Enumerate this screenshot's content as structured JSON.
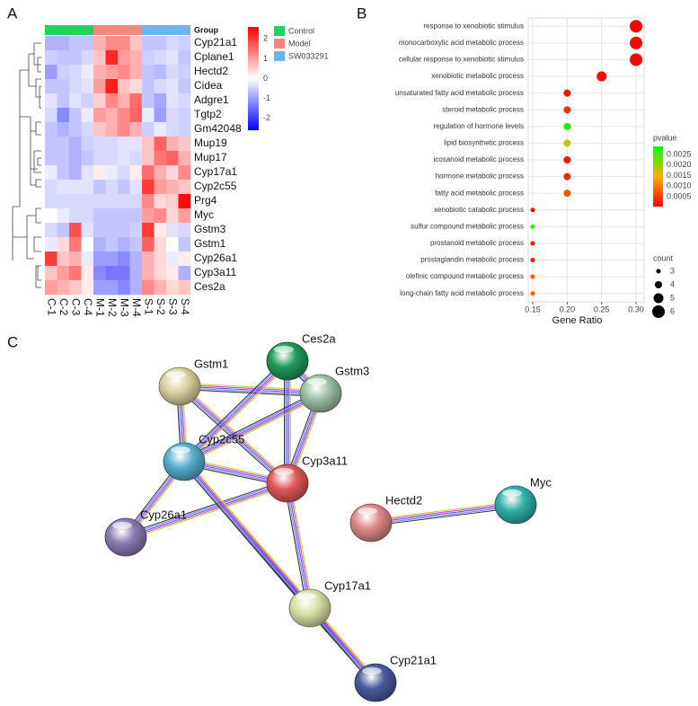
{
  "chart_data": [
    {
      "type": "heatmap",
      "panel": "A",
      "legend_title": "Group",
      "groups": [
        {
          "name": "Control",
          "color": "#1fd35c",
          "columns": 4
        },
        {
          "name": "Model",
          "color": "#f2877f",
          "columns": 4
        },
        {
          "name": "SW033291",
          "color": "#6db3f2",
          "columns": 4
        }
      ],
      "columns": [
        "C-1",
        "C-2",
        "C-3",
        "C-4",
        "M-1",
        "M-2",
        "M-3",
        "M-4",
        "S-1",
        "S-2",
        "S-3",
        "S-4"
      ],
      "rows": [
        "Cyp21a1",
        "Cplane1",
        "Hectd2",
        "Cidea",
        "Adgre1",
        "Tgtp2",
        "Gm42048",
        "Mup19",
        "Mup17",
        "Cyp17a1",
        "Cyp2c55",
        "Prg4",
        "Myc",
        "Gstm3",
        "Gstm1",
        "Cyp26a1",
        "Cyp3a11",
        "Ces2a"
      ],
      "values": [
        [
          -0.8,
          -0.8,
          -0.6,
          -0.6,
          0.8,
          1.2,
          1.2,
          0.6,
          -0.6,
          -0.6,
          -0.4,
          -0.5
        ],
        [
          -0.5,
          -0.6,
          -0.6,
          -0.4,
          0.6,
          2.2,
          1.0,
          0.8,
          -0.5,
          -0.4,
          -0.3,
          -0.6
        ],
        [
          -1.0,
          -0.5,
          -0.4,
          -0.2,
          0.8,
          1.0,
          1.2,
          0.8,
          -0.6,
          -0.7,
          -0.4,
          -0.5
        ],
        [
          -0.6,
          -0.6,
          -0.4,
          -0.3,
          1.0,
          2.3,
          0.6,
          0.4,
          -0.6,
          -0.4,
          -0.3,
          -0.6
        ],
        [
          -0.3,
          -0.6,
          -0.3,
          -0.5,
          0.5,
          1.2,
          0.8,
          1.5,
          -0.6,
          -0.9,
          -0.3,
          -0.4
        ],
        [
          -0.4,
          -1.2,
          -0.6,
          -0.2,
          1.0,
          0.8,
          1.2,
          1.6,
          -0.2,
          -1.0,
          -0.4,
          -0.5
        ],
        [
          -0.6,
          -0.8,
          -0.6,
          -0.4,
          0.6,
          0.8,
          1.2,
          0.8,
          -0.5,
          -0.2,
          -0.4,
          -0.5
        ],
        [
          -0.6,
          -0.6,
          -0.8,
          -0.5,
          -0.4,
          -0.4,
          -0.3,
          -0.3,
          0.6,
          1.6,
          0.8,
          0.6
        ],
        [
          -0.6,
          -0.6,
          -0.8,
          -0.6,
          -0.4,
          -0.4,
          -0.3,
          -0.4,
          0.6,
          1.4,
          1.6,
          0.8
        ],
        [
          -0.2,
          -0.6,
          -0.8,
          -0.3,
          0.2,
          -0.2,
          -0.4,
          0.2,
          1.5,
          0.8,
          0.4,
          1.2
        ],
        [
          -0.4,
          -0.3,
          -0.3,
          -0.3,
          -0.6,
          -0.4,
          -0.6,
          -0.3,
          2.0,
          1.0,
          0.8,
          0.6
        ],
        [
          -0.4,
          -0.4,
          -0.4,
          -0.4,
          -0.4,
          -0.4,
          -0.4,
          -0.4,
          1.2,
          0.4,
          0.5,
          2.5
        ],
        [
          0.0,
          -0.2,
          -0.4,
          -0.4,
          -0.6,
          -0.6,
          -0.6,
          -0.6,
          1.0,
          1.2,
          0.4,
          1.0
        ],
        [
          -0.4,
          -0.6,
          1.8,
          -0.3,
          -0.6,
          -0.6,
          -0.6,
          -0.5,
          2.0,
          0.2,
          -0.3,
          -0.4
        ],
        [
          -0.2,
          0.4,
          1.4,
          0.0,
          -0.8,
          -0.6,
          -0.8,
          -0.6,
          1.6,
          0.4,
          0.0,
          -0.6
        ],
        [
          2.0,
          0.6,
          0.8,
          -0.2,
          -1.0,
          -1.0,
          -1.2,
          -0.8,
          0.8,
          0.4,
          -0.2,
          0.2
        ],
        [
          0.6,
          1.0,
          1.4,
          0.2,
          -1.2,
          -1.4,
          -1.4,
          -0.8,
          0.8,
          0.4,
          0.2,
          -0.8
        ],
        [
          1.0,
          0.8,
          0.6,
          0.2,
          -1.0,
          -1.0,
          -1.2,
          -0.8,
          1.2,
          0.8,
          0.4,
          0.6
        ]
      ],
      "zlim": [
        -2.6,
        2.6
      ],
      "zticks": [
        2,
        1,
        0,
        -1,
        -2
      ],
      "colors": [
        "#0000ff",
        "#ffffff",
        "#ff0000"
      ]
    },
    {
      "type": "dot",
      "panel": "B",
      "xlabel": "Gene Ratio",
      "categories": [
        "response to xenobiotic stimulus",
        "monocarboxylic acid metabolic process",
        "cellular response to xenobiotic stimulus",
        "xenobiotic metabolic process",
        "unsaturated fatty acid metabolic process",
        "steroid metabolic process",
        "regulation of hormone levels",
        "lipid biosynthetic process",
        "icosanoid metabolic process",
        "hormone metabolic process",
        "fatty acid metabolic process",
        "xenobiotic catabolic process",
        "sulfur compound metabolic process",
        "prostanoid metabolic process",
        "prostaglandin metabolic process",
        "olefinic compound metabolic process",
        "long-chain fatty acid metabolic process"
      ],
      "values": [
        0.3,
        0.3,
        0.3,
        0.25,
        0.2,
        0.2,
        0.2,
        0.2,
        0.2,
        0.2,
        0.2,
        0.15,
        0.15,
        0.15,
        0.15,
        0.15,
        0.15
      ],
      "pvalue": [
        5e-05,
        6e-05,
        7e-05,
        0.0001,
        0.0002,
        0.0004,
        0.0027,
        0.0018,
        0.0002,
        0.0003,
        0.0007,
        0.0001,
        0.0026,
        0.0002,
        0.0002,
        0.0008,
        0.0008
      ],
      "count": [
        6,
        6,
        6,
        5,
        4,
        4,
        4,
        4,
        4,
        4,
        4,
        3,
        3,
        3,
        3,
        3,
        3
      ],
      "xlim": [
        0.1435,
        0.3117
      ],
      "xticks": [
        0.15,
        {
          "value": 0.2,
          "label": "0.20"
        },
        0.25,
        {
          "value": 0.3,
          "label": "0.30"
        }
      ],
      "grid": true,
      "color_title": "pvalue",
      "plim": [
        3e-05,
        0.00288
      ],
      "pticks": [
        0.0025,
        {
          "value": 0.002,
          "label": "0.0020"
        },
        0.0015,
        {
          "value": 0.001,
          "label": "0.0010"
        },
        0.0005
      ],
      "colors": [
        "#ff0000",
        "#ffb000",
        "#00ff00"
      ],
      "size_title": "count",
      "size_ticks": [
        3,
        4,
        5,
        6
      ]
    },
    {
      "type": "network",
      "panel": "C",
      "nodes": [
        {
          "label": "Ces2a",
          "color": "#1e9a5c"
        },
        {
          "label": "Gstm1",
          "color": "#d9d2a0"
        },
        {
          "label": "Gstm3",
          "color": "#9dbfa6"
        },
        {
          "label": "Cyp2c55",
          "color": "#55aece"
        },
        {
          "label": "Cyp3a11",
          "color": "#e05a5a"
        },
        {
          "label": "Cyp26a1",
          "color": "#8a7db3"
        },
        {
          "label": "Hectd2",
          "color": "#e0878a"
        },
        {
          "label": "Myc",
          "color": "#2fb0a8"
        },
        {
          "label": "Cyp17a1",
          "color": "#d8e0a6"
        },
        {
          "label": "Cyp21a1",
          "color": "#4b5a9e"
        }
      ],
      "edges": [
        [
          1,
          2
        ],
        [
          1,
          3
        ],
        [
          1,
          4
        ],
        [
          0,
          2
        ],
        [
          0,
          3
        ],
        [
          0,
          4
        ],
        [
          2,
          3
        ],
        [
          2,
          4
        ],
        [
          3,
          4
        ],
        [
          3,
          5
        ],
        [
          4,
          5
        ],
        [
          3,
          8
        ],
        [
          4,
          8
        ],
        [
          8,
          9
        ],
        [
          3,
          9
        ],
        [
          6,
          7
        ]
      ]
    }
  ]
}
